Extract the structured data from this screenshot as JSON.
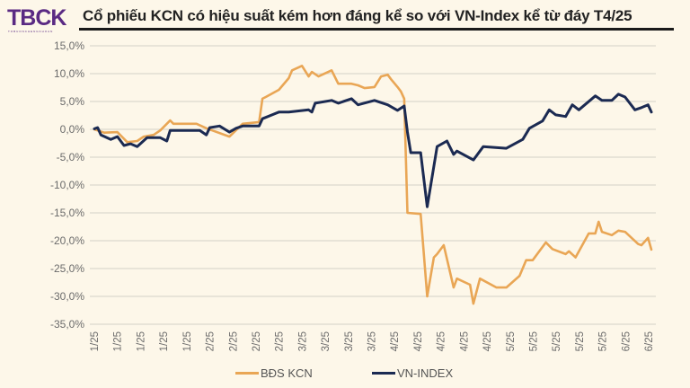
{
  "header": {
    "logo": "TBCK",
    "logo_sub": "TOBUONCHENGKHOAN",
    "title": "Cổ phiếu KCN có hiệu suất kém hơn đáng kể so với VN-Index kể từ đáy T4/25"
  },
  "chart_data": {
    "type": "line",
    "title": "Cổ phiếu KCN có hiệu suất kém hơn đáng kể so với VN-Index kể từ đáy T4/25",
    "xlabel": "",
    "ylabel": "",
    "ylim": [
      -35,
      15
    ],
    "xlim": [
      "2025-01-02",
      "2025-06-20"
    ],
    "y_ticks": [
      "15,0%",
      "10,0%",
      "5,0%",
      "0,0%",
      "-5,0%",
      "-10,0%",
      "-15,0%",
      "-20,0%",
      "-25,0%",
      "-30,0%",
      "-35,0%"
    ],
    "y_tick_values": [
      15,
      10,
      5,
      0,
      -5,
      -10,
      -15,
      -20,
      -25,
      -30,
      -35
    ],
    "x_ticks": [
      "1/25",
      "1/25",
      "1/25",
      "1/25",
      "1/25",
      "2/25",
      "2/25",
      "2/25",
      "2/25",
      "3/25",
      "3/25",
      "3/25",
      "3/25",
      "4/25",
      "4/25",
      "4/25",
      "4/25",
      "4/25",
      "5/25",
      "5/25",
      "5/25",
      "5/25",
      "5/25",
      "6/25",
      "6/25"
    ],
    "grid": true,
    "legend": "bottom",
    "series": [
      {
        "name": "BĐS KCN",
        "color": "#e9a655",
        "x": [
          "2025-01-02",
          "2025-01-05",
          "2025-01-09",
          "2025-01-12",
          "2025-01-15",
          "2025-01-17",
          "2025-01-20",
          "2025-01-22",
          "2025-01-25",
          "2025-01-26",
          "2025-02-02",
          "2025-02-05",
          "2025-02-12",
          "2025-02-16",
          "2025-02-21",
          "2025-02-22",
          "2025-02-23",
          "2025-02-27",
          "2025-03-02",
          "2025-03-03",
          "2025-03-06",
          "2025-03-08",
          "2025-03-09",
          "2025-03-11",
          "2025-03-15",
          "2025-03-17",
          "2025-03-21",
          "2025-03-23",
          "2025-03-25",
          "2025-03-28",
          "2025-03-30",
          "2025-04-01",
          "2025-04-02",
          "2025-04-04",
          "2025-04-05",
          "2025-04-06",
          "2025-04-07",
          "2025-04-11",
          "2025-04-13",
          "2025-04-15",
          "2025-04-16",
          "2025-04-18",
          "2025-04-21",
          "2025-04-22",
          "2025-04-26",
          "2025-04-27",
          "2025-04-29",
          "2025-05-04",
          "2025-05-07",
          "2025-05-11",
          "2025-05-13",
          "2025-05-15",
          "2025-05-19",
          "2025-05-21",
          "2025-05-25",
          "2025-05-26",
          "2025-05-28",
          "2025-06-01",
          "2025-06-03",
          "2025-06-04",
          "2025-06-05",
          "2025-06-08",
          "2025-06-10",
          "2025-06-12",
          "2025-06-16",
          "2025-06-17",
          "2025-06-19",
          "2025-06-20"
        ],
        "y": [
          0,
          -0.6,
          -0.5,
          -2.3,
          -2.1,
          -1.3,
          -1,
          -0.2,
          1.6,
          1,
          1,
          0.2,
          -1.3,
          1,
          1.3,
          5.5,
          5.8,
          7.1,
          9.2,
          10.6,
          11.4,
          9.5,
          10.3,
          9.5,
          10.6,
          8.2,
          8.2,
          7.9,
          7.4,
          7.6,
          9.5,
          9.8,
          9,
          7.6,
          6.8,
          5.5,
          -15,
          -15.2,
          -30,
          -23,
          -22.4,
          -20.8,
          -28.4,
          -26.8,
          -27.9,
          -31.3,
          -26.8,
          -28.4,
          -28.4,
          -26.3,
          -23.5,
          -23.5,
          -20.3,
          -21.5,
          -22.4,
          -21.9,
          -23,
          -18.7,
          -18.7,
          -16.6,
          -18.4,
          -19,
          -18.2,
          -18.4,
          -20.6,
          -20.8,
          -19.5,
          -21.6
        ]
      },
      {
        "name": "VN-INDEX",
        "color": "#1b2a52",
        "x": [
          "2025-01-02",
          "2025-01-03",
          "2025-01-04",
          "2025-01-07",
          "2025-01-09",
          "2025-01-11",
          "2025-01-13",
          "2025-01-15",
          "2025-01-18",
          "2025-01-22",
          "2025-01-24",
          "2025-01-25",
          "2025-02-03",
          "2025-02-05",
          "2025-02-06",
          "2025-02-09",
          "2025-02-12",
          "2025-02-14",
          "2025-02-16",
          "2025-02-21",
          "2025-02-22",
          "2025-02-27",
          "2025-03-02",
          "2025-03-08",
          "2025-03-09",
          "2025-03-10",
          "2025-03-15",
          "2025-03-17",
          "2025-03-21",
          "2025-03-23",
          "2025-03-28",
          "2025-04-01",
          "2025-04-04",
          "2025-04-06",
          "2025-04-07",
          "2025-04-08",
          "2025-04-11",
          "2025-04-13",
          "2025-04-16",
          "2025-04-19",
          "2025-04-21",
          "2025-04-22",
          "2025-04-27",
          "2025-04-30",
          "2025-05-07",
          "2025-05-12",
          "2025-05-14",
          "2025-05-18",
          "2025-05-20",
          "2025-05-22",
          "2025-05-25",
          "2025-05-27",
          "2025-05-29",
          "2025-06-03",
          "2025-06-05",
          "2025-06-08",
          "2025-06-10",
          "2025-06-12",
          "2025-06-15",
          "2025-06-17",
          "2025-06-19",
          "2025-06-20"
        ],
        "y": [
          0.1,
          0.3,
          -1,
          -1.8,
          -1.3,
          -2.9,
          -2.6,
          -3.1,
          -1.5,
          -1.5,
          -2.1,
          -0.2,
          -0.2,
          -1,
          0.3,
          0.6,
          -0.5,
          0.2,
          0.6,
          0.6,
          1.9,
          3.1,
          3.1,
          3.5,
          3.1,
          4.7,
          5.2,
          4.7,
          5.5,
          4.4,
          5.2,
          4.4,
          3.4,
          4.2,
          -0.5,
          -4.2,
          -4.2,
          -13.9,
          -3.1,
          -2.1,
          -4.5,
          -3.9,
          -5.5,
          -3.1,
          -3.4,
          -1.8,
          0.2,
          1.5,
          3.5,
          2.6,
          2.3,
          4.4,
          3.5,
          6,
          5.2,
          5.2,
          6.3,
          5.8,
          3.5,
          3.9,
          4.4,
          3.1
        ]
      }
    ]
  }
}
